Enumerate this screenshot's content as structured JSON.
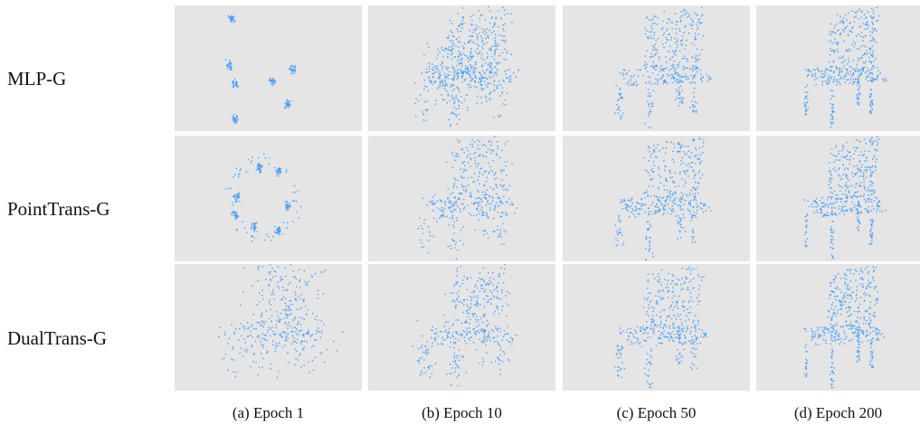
{
  "row_labels": [
    "MLP-G",
    "PointTrans-G",
    "DualTrans-G"
  ],
  "captions": [
    "(a) Epoch 1",
    "(b) Epoch 10",
    "(c) Epoch 50",
    "(d) Epoch 200"
  ]
}
